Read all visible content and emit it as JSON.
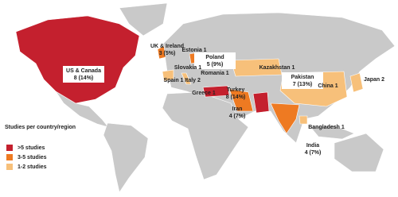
{
  "labels": [
    {
      "lines": [
        "US & Canada",
        "8 (14%)"
      ]
    },
    {
      "lines": [
        "UK & Ireland",
        "3 (5%)"
      ]
    },
    {
      "lines": [
        "Estonia 1"
      ]
    },
    {
      "lines": [
        "Poland",
        "5 (9%)"
      ]
    },
    {
      "lines": [
        "Slovakia 1"
      ]
    },
    {
      "lines": [
        "Romania 1"
      ]
    },
    {
      "lines": [
        "Spain 1"
      ]
    },
    {
      "lines": [
        "Italy 2"
      ]
    },
    {
      "lines": [
        "Greece 1"
      ]
    },
    {
      "lines": [
        "Turkey",
        "8 (14%)"
      ]
    },
    {
      "lines": [
        "Kazakhstan 1"
      ]
    },
    {
      "lines": [
        "Pakistan",
        "7 (13%)"
      ]
    },
    {
      "lines": [
        "China 1"
      ]
    },
    {
      "lines": [
        "Japan 2"
      ]
    },
    {
      "lines": [
        "Iran",
        "4 (7%)"
      ]
    },
    {
      "lines": [
        "Bangladesh 1"
      ]
    },
    {
      "lines": [
        "India",
        "4 (7%)"
      ]
    }
  ],
  "legend": {
    "title": "Studies per country/region",
    "items": [
      {
        "label": ">5 studies",
        "color": "#c4202e"
      },
      {
        "label": "3-5 studies",
        "color": "#ee7a22"
      },
      {
        "label": "1-2 studies",
        "color": "#f7c07a"
      }
    ]
  }
}
